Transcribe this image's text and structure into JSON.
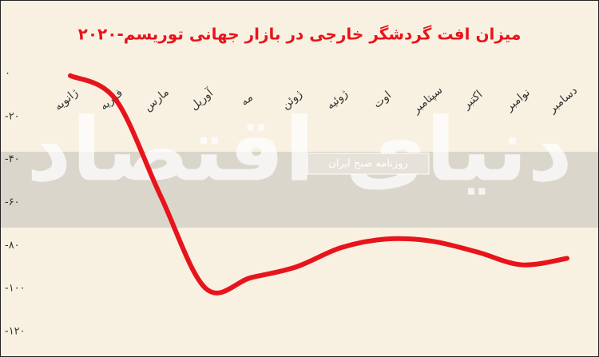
{
  "chart_data": {
    "type": "line",
    "title": "میزان افت گردشگر خارجی در بازار جهانی توریسم-۲۰۲۰",
    "watermark": "دنیای اقتصاد",
    "watermark_tag": "روزنامه صبح ایران",
    "categories": [
      "ژانویه",
      "فوریه",
      "مارس",
      "آوریل",
      "مه",
      "ژوئن",
      "ژوئیه",
      "اوت",
      "سپتامبر",
      "اکتبر",
      "نوامبر",
      "دسامبر"
    ],
    "series": [
      {
        "color": "#e8141b",
        "values": [
          -1,
          -12,
          -57,
          -100,
          -95,
          -90,
          -81,
          -77,
          -78,
          -83,
          -89,
          -86
        ]
      }
    ],
    "ylim": [
      -120,
      0
    ],
    "yticks": [
      {
        "value": 0,
        "label": "۰"
      },
      {
        "value": -20,
        "label": "-۲۰"
      },
      {
        "value": -40,
        "label": "-۴۰"
      },
      {
        "value": -60,
        "label": "-۶۰"
      },
      {
        "value": -80,
        "label": "-۸۰"
      },
      {
        "value": -100,
        "label": "-۱۰۰"
      },
      {
        "value": -120,
        "label": "-۱۲۰"
      }
    ]
  }
}
